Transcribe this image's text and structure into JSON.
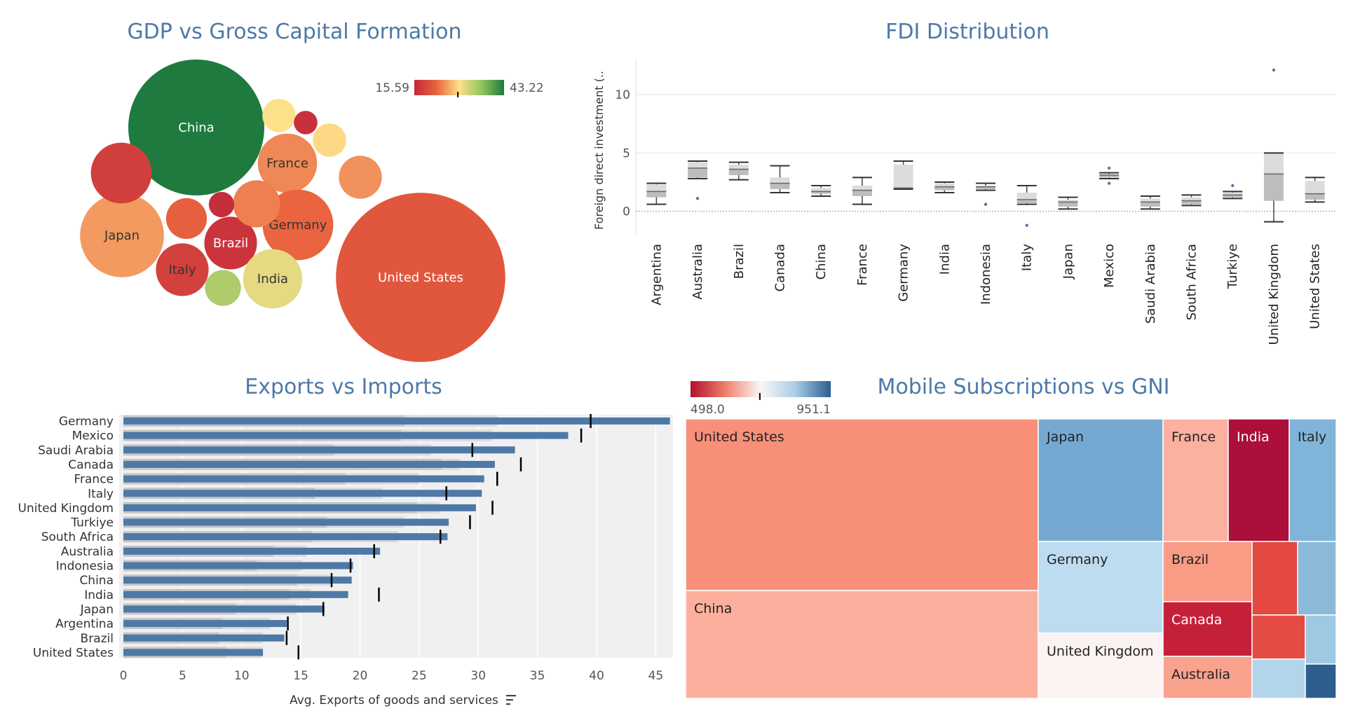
{
  "chart_data": [
    {
      "type": "bubble",
      "title": "GDP vs Gross Capital Formation",
      "color_legend": {
        "min": "15.59",
        "max": "43.22",
        "marker": 29.0
      },
      "bubbles": [
        {
          "label": "China",
          "size": 100,
          "color_value": 43.22
        },
        {
          "label": "United States",
          "size": 155,
          "color_value": 21.0
        },
        {
          "label": "Japan",
          "size": 38,
          "color_value": 25.5
        },
        {
          "label": "France",
          "size": 19,
          "color_value": 24.5
        },
        {
          "label": "Germany",
          "size": 27,
          "color_value": 22.5
        },
        {
          "label": "Brazil",
          "size": 15,
          "color_value": 17.0
        },
        {
          "label": "Italy",
          "size": 15,
          "color_value": 18.5
        },
        {
          "label": "India",
          "size": 19,
          "color_value": 31.0
        },
        {
          "label": "",
          "size": 20,
          "color_value": 18.2
        },
        {
          "label": "",
          "size": 6,
          "color_value": 29.5
        },
        {
          "label": "",
          "size": 3,
          "color_value": 16.5
        },
        {
          "label": "",
          "size": 6,
          "color_value": 29.0
        },
        {
          "label": "",
          "size": 9,
          "color_value": 22.0
        },
        {
          "label": "",
          "size": 12,
          "color_value": 24.0
        },
        {
          "label": "",
          "size": 3.5,
          "color_value": 16.2
        },
        {
          "label": "",
          "size": 10,
          "color_value": 25.0
        },
        {
          "label": "",
          "size": 7,
          "color_value": 34.5
        }
      ]
    },
    {
      "type": "boxplot",
      "title": "FDI Distribution",
      "ylabel": "Foreign direct investment (..",
      "ylim": [
        -2,
        13
      ],
      "yticks": [
        0,
        5,
        10
      ],
      "categories": [
        "Argentina",
        "Australia",
        "Brazil",
        "Canada",
        "China",
        "France",
        "Germany",
        "India",
        "Indonesia",
        "Italy",
        "Japan",
        "Mexico",
        "Saudi Arabia",
        "South Africa",
        "Turkiye",
        "United Kingdom",
        "United States"
      ],
      "boxes": [
        {
          "min": 0.6,
          "q1": 1.2,
          "median": 1.7,
          "q3": 2.3,
          "max": 2.4,
          "outliers": []
        },
        {
          "min": 2.8,
          "q1": 2.9,
          "median": 3.7,
          "q3": 4.2,
          "max": 4.3,
          "outliers": [
            1.1
          ]
        },
        {
          "min": 2.7,
          "q1": 3.1,
          "median": 3.6,
          "q3": 4.0,
          "max": 4.2,
          "outliers": []
        },
        {
          "min": 1.6,
          "q1": 1.9,
          "median": 2.4,
          "q3": 2.9,
          "max": 3.9,
          "outliers": []
        },
        {
          "min": 1.3,
          "q1": 1.5,
          "median": 1.7,
          "q3": 2.0,
          "max": 2.2,
          "outliers": []
        },
        {
          "min": 0.6,
          "q1": 1.3,
          "median": 1.8,
          "q3": 2.2,
          "max": 2.9,
          "outliers": []
        },
        {
          "min": 1.9,
          "q1": 2.0,
          "median": 2.0,
          "q3": 4.0,
          "max": 4.3,
          "outliers": []
        },
        {
          "min": 1.6,
          "q1": 1.8,
          "median": 2.1,
          "q3": 2.4,
          "max": 2.5,
          "outliers": []
        },
        {
          "min": 1.8,
          "q1": 1.9,
          "median": 2.1,
          "q3": 2.2,
          "max": 2.4,
          "outliers": [
            0.6
          ]
        },
        {
          "min": 0.6,
          "q1": 0.7,
          "median": 1.0,
          "q3": 1.6,
          "max": 2.2,
          "outliers": [
            -1.2
          ]
        },
        {
          "min": 0.2,
          "q1": 0.4,
          "median": 0.8,
          "q3": 1.0,
          "max": 1.2,
          "outliers": []
        },
        {
          "min": 2.8,
          "q1": 2.9,
          "median": 3.1,
          "q3": 3.2,
          "max": 3.3,
          "outliers": [
            3.7,
            2.4
          ]
        },
        {
          "min": 0.2,
          "q1": 0.4,
          "median": 0.8,
          "q3": 1.1,
          "max": 1.3,
          "outliers": []
        },
        {
          "min": 0.5,
          "q1": 0.6,
          "median": 0.9,
          "q3": 1.2,
          "max": 1.4,
          "outliers": []
        },
        {
          "min": 1.1,
          "q1": 1.2,
          "median": 1.4,
          "q3": 1.6,
          "max": 1.7,
          "outliers": [
            2.2
          ]
        },
        {
          "min": -0.9,
          "q1": 0.9,
          "median": 3.2,
          "q3": 5.0,
          "max": 5.0,
          "outliers": [
            12.1
          ]
        },
        {
          "min": 0.8,
          "q1": 1.0,
          "median": 1.5,
          "q3": 2.6,
          "max": 2.9,
          "outliers": []
        }
      ]
    },
    {
      "type": "bar",
      "title": "Exports vs Imports",
      "xlabel": "Avg. Exports of goods and services",
      "xlim": [
        0,
        48
      ],
      "xticks": [
        0,
        5,
        10,
        15,
        20,
        25,
        30,
        35,
        40,
        45
      ],
      "categories": [
        "Germany",
        "Mexico",
        "Saudi Arabia",
        "Canada",
        "France",
        "Italy",
        "United Kingdom",
        "Turkiye",
        "South Africa",
        "Australia",
        "Indonesia",
        "China",
        "India",
        "Japan",
        "Argentina",
        "Brazil",
        "United States"
      ],
      "series": [
        {
          "name": "Avg. Exports of goods and services",
          "values": [
            46.2,
            37.6,
            33.1,
            31.4,
            30.5,
            30.3,
            29.8,
            27.5,
            27.4,
            21.7,
            19.4,
            19.3,
            19.0,
            17.0,
            13.8,
            13.6,
            11.8
          ]
        },
        {
          "name": "",
          "values": [
            39.5,
            38.7,
            29.5,
            33.6,
            31.6,
            27.3,
            31.2,
            29.3,
            26.8,
            21.2,
            19.2,
            17.6,
            21.6,
            16.9,
            13.9,
            13.8,
            14.8
          ]
        }
      ],
      "bands": [
        [
          23.8,
          31.6
        ],
        [
          23.5,
          31.2
        ],
        [
          17.8,
          26.0
        ],
        [
          26.9,
          28.5
        ],
        [
          18.8,
          25.0
        ],
        [
          16.2,
          21.9
        ],
        [
          24.8,
          26.7
        ],
        [
          17.2,
          23.7
        ],
        [
          16.0,
          23.2
        ],
        [
          12.7,
          15.5
        ],
        [
          11.3,
          15.1
        ],
        [
          14.7,
          17.5
        ],
        [
          14.0,
          15.8
        ],
        [
          9.5,
          14.6
        ],
        [
          8.4,
          12.4
        ],
        [
          8.1,
          11.8
        ],
        [
          8.7,
          11.7
        ]
      ]
    },
    {
      "type": "treemap",
      "title": "Mobile Subscriptions vs GNI",
      "color_legend": {
        "min": "498.0",
        "max": "951.1",
        "marker": 722
      },
      "tiles": [
        {
          "label": "United States",
          "color": "#f89079"
        },
        {
          "label": "China",
          "color": "#fcaf9c"
        },
        {
          "label": "Japan",
          "color": "#76a9d2"
        },
        {
          "label": "Germany",
          "color": "#bedcf0"
        },
        {
          "label": "United Kingdom",
          "color": "#fbf3f1"
        },
        {
          "label": "France",
          "color": "#fbb0a0"
        },
        {
          "label": "India",
          "color": "#ac0f3a"
        },
        {
          "label": "Italy",
          "color": "#80b4d8"
        },
        {
          "label": "Brazil",
          "color": "#f99c86"
        },
        {
          "label": "Canada",
          "color": "#c5203a"
        },
        {
          "label": "Australia",
          "color": "#f9a28d"
        },
        {
          "label": "",
          "color": "#e34841"
        },
        {
          "label": "",
          "color": "#8bbad9"
        },
        {
          "label": "",
          "color": "#e44c43"
        },
        {
          "label": "",
          "color": "#9fc8e3"
        },
        {
          "label": "",
          "color": "#b3d5ec"
        },
        {
          "label": "",
          "color": "#2d5e8d"
        }
      ]
    }
  ]
}
